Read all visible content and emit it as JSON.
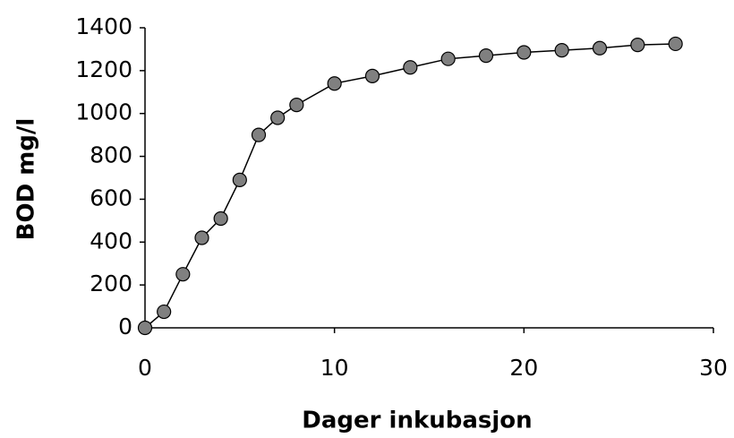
{
  "chart_data": {
    "type": "line",
    "x_label": "Dager inkubasjon",
    "y_label": "BOD mg/l",
    "x": [
      0,
      1,
      2,
      3,
      4,
      5,
      6,
      7,
      8,
      10,
      12,
      14,
      16,
      18,
      20,
      22,
      24,
      26,
      28
    ],
    "values": [
      0,
      75,
      250,
      420,
      510,
      690,
      900,
      980,
      1040,
      1140,
      1175,
      1215,
      1255,
      1270,
      1285,
      1295,
      1305,
      1320,
      1325
    ],
    "color": "#000000",
    "marker_color": "#808080",
    "xlim": [
      0,
      30
    ],
    "xticks": [
      0,
      10,
      20,
      30
    ],
    "ylim": [
      0,
      1400
    ],
    "yticks": [
      0,
      200,
      400,
      600,
      800,
      1000,
      1200,
      1400
    ],
    "grid": false
  }
}
